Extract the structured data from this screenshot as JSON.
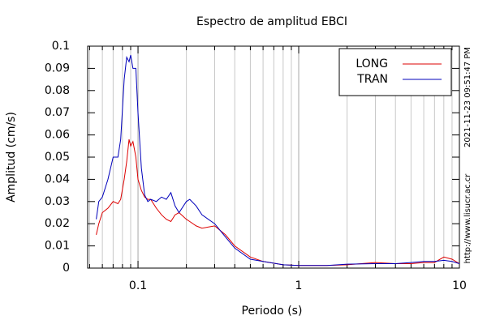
{
  "chart_data": {
    "type": "line",
    "title": "Espectro de amplitud EBCI",
    "x_label": "Periodo (s)",
    "y_label": "Amplitud (cm/s)",
    "annotations": [
      "2021-11-23 09:51:47 PM",
      "http://www.lisucr.ac.cr"
    ],
    "x": [
      0.055,
      0.057,
      0.06,
      0.065,
      0.07,
      0.075,
      0.078,
      0.082,
      0.085,
      0.088,
      0.09,
      0.093,
      0.097,
      0.1,
      0.105,
      0.11,
      0.115,
      0.12,
      0.13,
      0.14,
      0.15,
      0.16,
      0.17,
      0.18,
      0.2,
      0.21,
      0.23,
      0.25,
      0.3,
      0.35,
      0.4,
      0.5,
      0.6,
      0.8,
      1,
      1.5,
      2,
      3,
      4,
      5,
      6,
      7,
      8,
      9,
      10
    ],
    "series": [
      {
        "name": "LONG",
        "color": "#dd0000",
        "values": [
          0.015,
          0.02,
          0.025,
          0.027,
          0.03,
          0.029,
          0.031,
          0.04,
          0.048,
          0.058,
          0.055,
          0.057,
          0.05,
          0.04,
          0.035,
          0.032,
          0.031,
          0.031,
          0.027,
          0.024,
          0.022,
          0.021,
          0.024,
          0.025,
          0.022,
          0.021,
          0.019,
          0.018,
          0.019,
          0.015,
          0.01,
          0.005,
          0.003,
          0.0015,
          0.0012,
          0.0012,
          0.0015,
          0.0025,
          0.002,
          0.002,
          0.0025,
          0.0025,
          0.005,
          0.004,
          0.002
        ]
      },
      {
        "name": "TRAN",
        "color": "#0000bb",
        "values": [
          0.022,
          0.03,
          0.032,
          0.04,
          0.05,
          0.05,
          0.058,
          0.085,
          0.095,
          0.093,
          0.096,
          0.09,
          0.09,
          0.07,
          0.045,
          0.033,
          0.03,
          0.031,
          0.03,
          0.032,
          0.031,
          0.034,
          0.028,
          0.025,
          0.03,
          0.031,
          0.028,
          0.024,
          0.02,
          0.014,
          0.009,
          0.004,
          0.003,
          0.0015,
          0.0012,
          0.0012,
          0.0018,
          0.002,
          0.002,
          0.0025,
          0.003,
          0.003,
          0.0035,
          0.003,
          0.002
        ]
      }
    ],
    "xlog": true,
    "xlim": [
      0.0486,
      10
    ],
    "xticks": [
      0.1,
      1,
      10
    ],
    "xminorticks": [
      0.05,
      0.06,
      0.07,
      0.08,
      0.09,
      0.2,
      0.3,
      0.4,
      0.5,
      0.6,
      0.7,
      0.8,
      0.9,
      2,
      3,
      4,
      5,
      6,
      7,
      8,
      9
    ],
    "ylim": [
      0,
      0.1
    ],
    "yticks": [
      0,
      0.01,
      0.02,
      0.03,
      0.04,
      0.05,
      0.06,
      0.07,
      0.08,
      0.09,
      0.1
    ],
    "grid": "x",
    "legend": "top-right"
  }
}
